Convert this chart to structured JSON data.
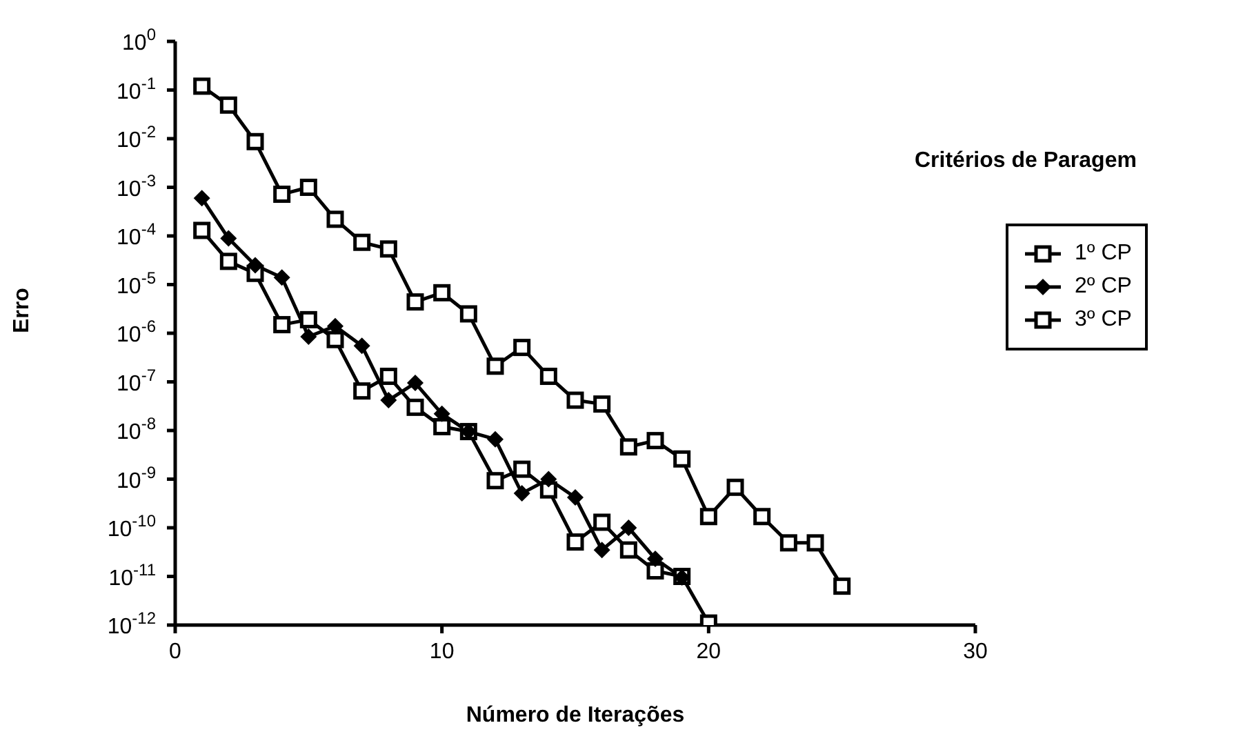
{
  "chart_data": {
    "type": "line",
    "xlabel": "Número de Iterações",
    "ylabel": "Erro",
    "legend_title": "Critérios de Paragem",
    "legend": "right",
    "log": "y",
    "grid": false,
    "xlim": [
      0,
      30
    ],
    "xticks": [
      0,
      10,
      20,
      30
    ],
    "ylim": [
      1e-12,
      1
    ],
    "yticks": [
      {
        "value": 1,
        "label": "10$^{0}$"
      },
      {
        "value": 0.1,
        "label": "10$^{-1}$"
      },
      {
        "value": 0.01,
        "label": "10$^{-2}$"
      },
      {
        "value": 0.001,
        "label": "10$^{-3}$"
      },
      {
        "value": 0.0001,
        "label": "10$^{-4}$"
      },
      {
        "value": 1e-05,
        "label": "10$^{-5}$"
      },
      {
        "value": 1e-06,
        "label": "10$^{-6}$"
      },
      {
        "value": 1e-07,
        "label": "10$^{-7}$"
      },
      {
        "value": 1e-08,
        "label": "10$^{-8}$"
      },
      {
        "value": 1e-09,
        "label": "10$^{-9}$"
      },
      {
        "value": 1e-10,
        "label": "10$^{-10}$"
      },
      {
        "value": 1e-11,
        "label": "10$^{-11}$"
      },
      {
        "value": 1e-12,
        "label": "10$^{-12}$"
      }
    ],
    "series": [
      {
        "name": "1º CP",
        "color": "#000000",
        "marker": "square",
        "x": [
          1,
          2,
          3,
          4,
          5,
          6,
          7,
          8,
          9,
          10,
          11,
          12,
          13,
          14,
          15,
          16,
          17,
          18,
          19,
          20
        ],
        "values": [
          0.00013,
          3e-05,
          1.7e-05,
          1.5e-06,
          1.9e-06,
          7.4e-07,
          6.5e-08,
          1.3e-07,
          3e-08,
          1.2e-08,
          9.5e-09,
          9.3e-10,
          1.6e-09,
          6e-10,
          5.1e-11,
          1.3e-10,
          3.5e-11,
          1.3e-11,
          1e-11,
          1.1e-12
        ]
      },
      {
        "name": "2º CP",
        "color": "#000000",
        "marker": "diamond",
        "x": [
          1,
          2,
          3,
          4,
          5,
          6,
          7,
          8,
          9,
          10,
          11,
          12,
          13,
          14,
          15,
          16,
          17,
          18,
          19
        ],
        "values": [
          0.0006,
          8.9e-05,
          2.5e-05,
          1.4e-05,
          8.5e-07,
          1.4e-06,
          5.5e-07,
          4.2e-08,
          9.5e-08,
          2.2e-08,
          9.5e-09,
          6.6e-09,
          5.1e-10,
          1e-09,
          4.2e-10,
          3.5e-11,
          1e-10,
          2.3e-11,
          9.5e-12
        ]
      },
      {
        "name": "3º CP",
        "color": "#000000",
        "marker": "square",
        "x": [
          1,
          2,
          3,
          4,
          5,
          6,
          7,
          8,
          9,
          10,
          11,
          12,
          13,
          14,
          15,
          16,
          17,
          18,
          19,
          20,
          21,
          22,
          23,
          24,
          25
        ],
        "values": [
          0.12,
          0.049,
          0.0087,
          0.00072,
          0.001,
          0.00022,
          7.4e-05,
          5.4e-05,
          4.4e-06,
          6.8e-06,
          2.5e-06,
          2.1e-07,
          5.1e-07,
          1.3e-07,
          4.2e-08,
          3.5e-08,
          4.6e-09,
          6.2e-09,
          2.6e-09,
          1.7e-10,
          6.8e-10,
          1.7e-10,
          4.9e-11,
          4.9e-11,
          6.3e-12
        ]
      }
    ]
  }
}
